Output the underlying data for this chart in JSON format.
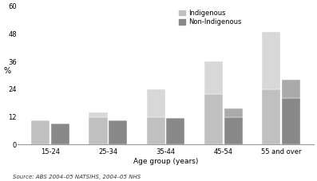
{
  "categories": [
    "15-24",
    "25-34",
    "35-44",
    "45-54",
    "55 and over"
  ],
  "indigenous_lower": [
    10.5,
    12.0,
    12.0,
    22.0,
    24.0
  ],
  "indigenous_upper": [
    0.0,
    2.0,
    12.0,
    14.0,
    25.0
  ],
  "non_indigenous_lower": [
    9.0,
    10.5,
    11.5,
    12.0,
    20.0
  ],
  "non_indigenous_upper": [
    0.0,
    0.0,
    0.0,
    3.5,
    8.0
  ],
  "color_indigenous_lower": "#c0c0c0",
  "color_indigenous_upper": "#d8d8d8",
  "color_non_indigenous_lower": "#888888",
  "color_non_indigenous_upper": "#aaaaaa",
  "ylabel": "%",
  "xlabel": "Age group (years)",
  "ylim": [
    0,
    60
  ],
  "yticks": [
    0,
    12,
    24,
    36,
    48,
    60
  ],
  "legend_indigenous": "Indigenous",
  "legend_non_indigenous": "Non-Indigenous",
  "source": "Source: ABS 2004–05 NATSIHS, 2004–05 NHS",
  "bar_width": 0.32,
  "background_color": "#ffffff"
}
